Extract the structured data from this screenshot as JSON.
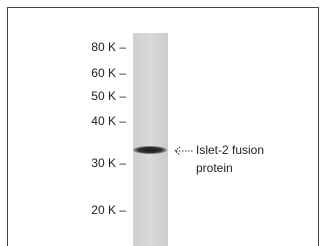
{
  "markers": [
    "80 K –",
    "60 K –",
    "50 K –",
    "40 K –",
    "30 K –",
    "20 K –"
  ],
  "annotation": [
    "Islet-2 fusion",
    "protein"
  ]
}
